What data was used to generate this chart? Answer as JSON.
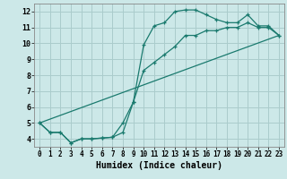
{
  "xlabel": "Humidex (Indice chaleur)",
  "bg_color": "#cce8e8",
  "grid_color": "#aacccc",
  "line_color": "#1a7a6e",
  "xlim": [
    -0.5,
    23.5
  ],
  "ylim": [
    3.5,
    12.5
  ],
  "xticks": [
    0,
    1,
    2,
    3,
    4,
    5,
    6,
    7,
    8,
    9,
    10,
    11,
    12,
    13,
    14,
    15,
    16,
    17,
    18,
    19,
    20,
    21,
    22,
    23
  ],
  "yticks": [
    4,
    5,
    6,
    7,
    8,
    9,
    10,
    11,
    12
  ],
  "curve1_x": [
    0,
    1,
    2,
    3,
    4,
    5,
    6,
    7,
    8,
    9,
    10,
    11,
    12,
    13,
    14,
    15,
    16,
    17,
    18,
    19,
    20,
    21,
    22,
    23
  ],
  "curve1_y": [
    5.0,
    4.4,
    4.4,
    3.75,
    4.0,
    4.0,
    4.05,
    4.1,
    4.4,
    6.3,
    9.9,
    11.1,
    11.3,
    12.0,
    12.1,
    12.1,
    11.8,
    11.5,
    11.3,
    11.3,
    11.8,
    11.1,
    11.1,
    10.5
  ],
  "curve2_x": [
    0,
    1,
    2,
    3,
    4,
    5,
    6,
    7,
    8,
    9,
    10,
    11,
    12,
    13,
    14,
    15,
    16,
    17,
    18,
    19,
    20,
    21,
    22,
    23
  ],
  "curve2_y": [
    5.0,
    4.4,
    4.4,
    3.75,
    4.0,
    4.0,
    4.05,
    4.1,
    5.0,
    6.3,
    8.3,
    8.8,
    9.3,
    9.8,
    10.5,
    10.5,
    10.8,
    10.8,
    11.0,
    11.0,
    11.3,
    11.0,
    11.0,
    10.5
  ],
  "curve3_x": [
    0,
    23
  ],
  "curve3_y": [
    5.0,
    10.5
  ]
}
